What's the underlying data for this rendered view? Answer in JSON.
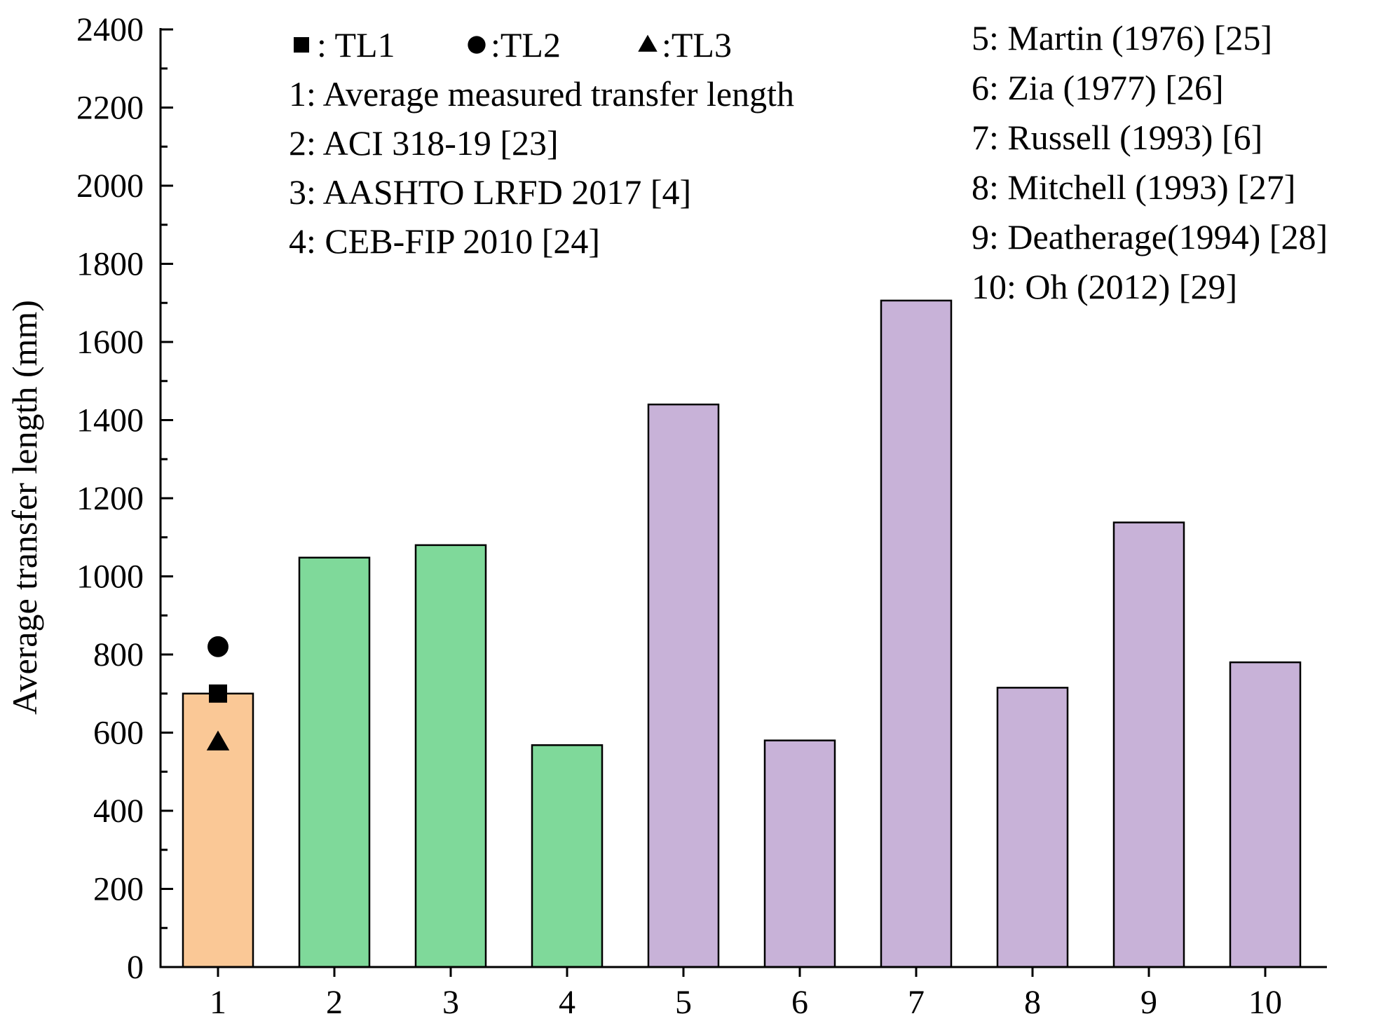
{
  "chart_data": {
    "type": "bar",
    "title": "",
    "xlabel": "",
    "ylabel": "Average transfer length (mm)",
    "ylim": [
      0,
      2400
    ],
    "yticks": [
      0,
      200,
      400,
      600,
      800,
      1000,
      1200,
      1400,
      1600,
      1800,
      2000,
      2200,
      2400
    ],
    "categories": [
      "1",
      "2",
      "3",
      "4",
      "5",
      "6",
      "7",
      "8",
      "9",
      "10"
    ],
    "values": [
      700,
      1048,
      1080,
      568,
      1440,
      580,
      1706,
      715,
      1138,
      780
    ],
    "bar_groups": [
      "measured",
      "code",
      "code",
      "code",
      "literature",
      "literature",
      "literature",
      "literature",
      "literature",
      "literature"
    ],
    "colors": {
      "measured": "#FAC896",
      "code": "#7FD99A",
      "literature": "#C8B2D8",
      "edge": "#000000"
    },
    "measured_points": [
      {
        "name": "TL1",
        "marker": "square",
        "value": 700
      },
      {
        "name": "TL2",
        "marker": "circle",
        "value": 820
      },
      {
        "name": "TL3",
        "marker": "triangle",
        "value": 575
      }
    ],
    "marker_legend": [
      {
        "marker": "square",
        "text": ": TL1"
      },
      {
        "marker": "circle",
        "text": ":TL2"
      },
      {
        "marker": "triangle",
        "text": ":TL3"
      }
    ],
    "annotations_left": [
      "1: Average measured transfer length",
      "2: ACI 318-19 [23]",
      "3: AASHTO LRFD 2017 [4]",
      "4: CEB-FIP 2010 [24]"
    ],
    "annotations_right": [
      "5: Martin  (1976) [25]",
      "6: Zia (1977) [26]",
      "7: Russell  (1993) [6]",
      "8: Mitchell (1993) [27]",
      "9: Deatherage(1994) [28]",
      "10: Oh (2012) [29]"
    ]
  }
}
